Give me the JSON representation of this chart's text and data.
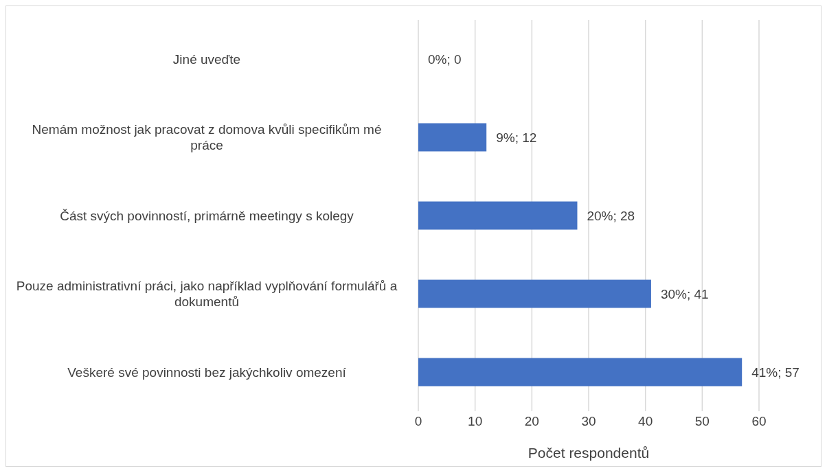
{
  "chart_data": {
    "type": "bar",
    "orientation": "horizontal",
    "categories": [
      "Jiné uveďte",
      "Nemám možnost jak pracovat z domova kvůli specifikům mé práce",
      "Část svých povinností, primárně meetingy s kolegy",
      "Pouze administrativní práci, jako například vyplňování formulářů a dokumentů",
      "Veškeré své povinnosti bez jakýchkoliv omezení"
    ],
    "values": [
      0,
      12,
      28,
      41,
      57
    ],
    "value_labels": [
      "0%; 0",
      "9%; 12",
      "20%; 28",
      "30%; 41",
      "41%; 57"
    ],
    "color": "#4472c4",
    "xlabel": "Počet respondentů",
    "xlim": [
      0,
      60
    ],
    "xticks": [
      0,
      10,
      20,
      30,
      40,
      50,
      60
    ],
    "grid": "x"
  }
}
